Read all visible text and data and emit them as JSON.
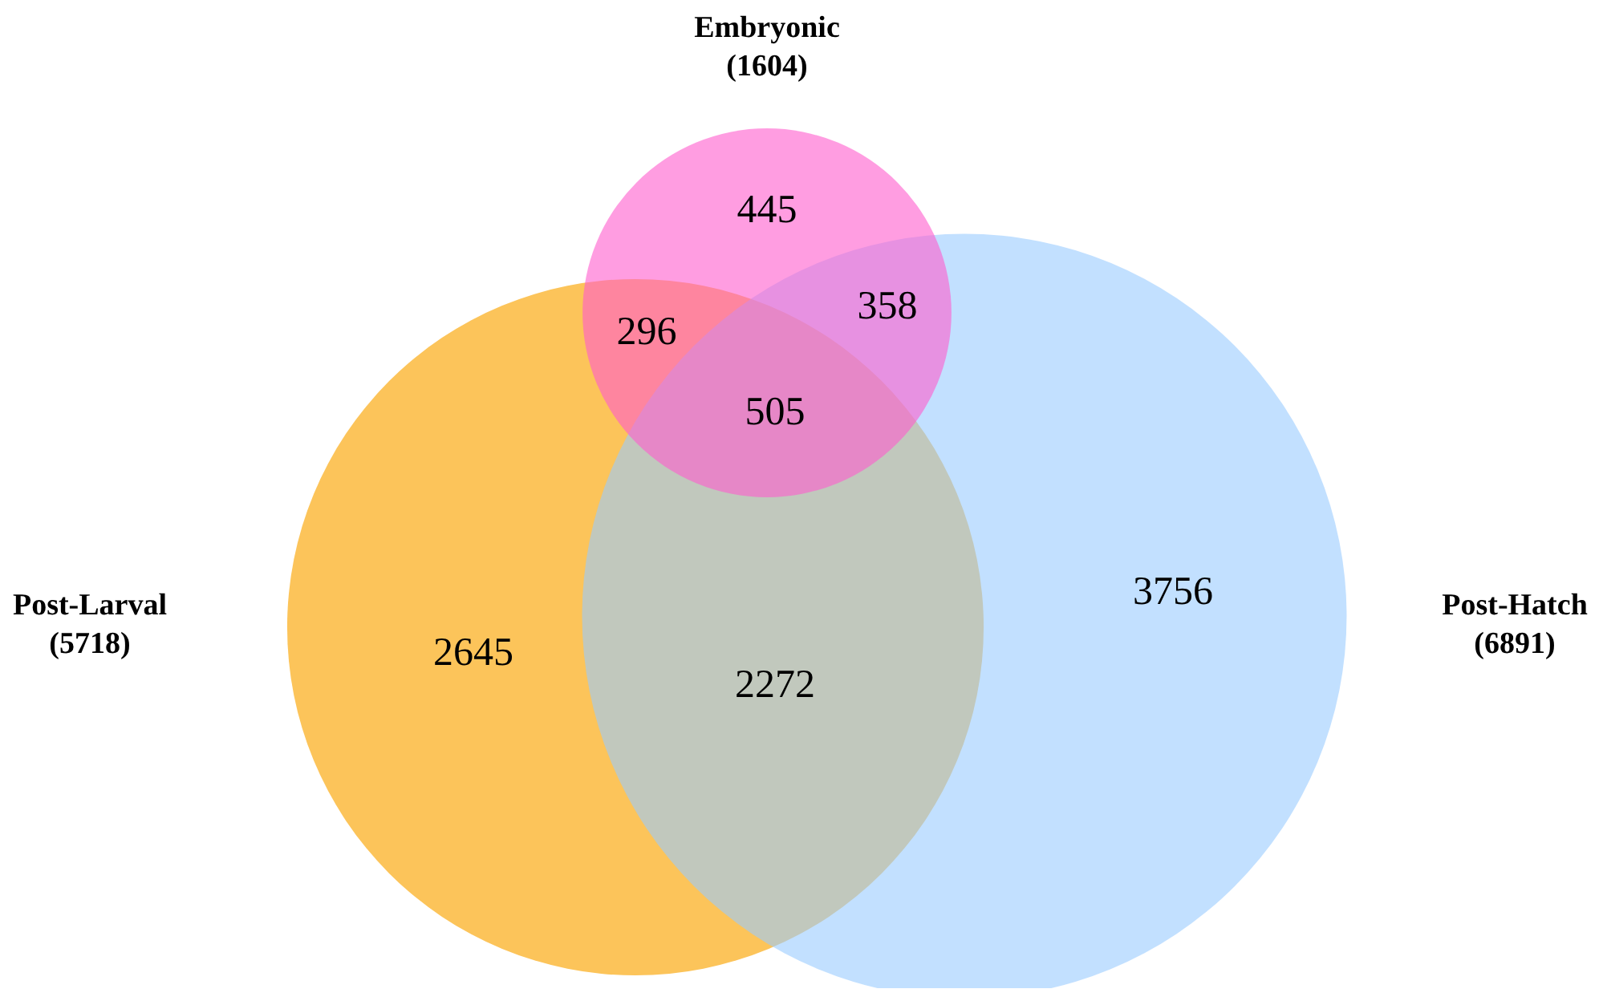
{
  "chart_data": {
    "type": "other",
    "categories": [
      "Embryonic",
      "Post-Larval",
      "Post-Hatch"
    ],
    "values": [
      1604,
      5718,
      6891
    ],
    "value_labels": [
      "(1604)",
      "(5718)",
      "(6891)"
    ],
    "colors": [
      "#ff5ccd",
      "#fcc45a",
      "#99ccff"
    ],
    "annotations": [
      "445",
      "296",
      "358",
      "505",
      "2645",
      "2272",
      "3756"
    ]
  }
}
